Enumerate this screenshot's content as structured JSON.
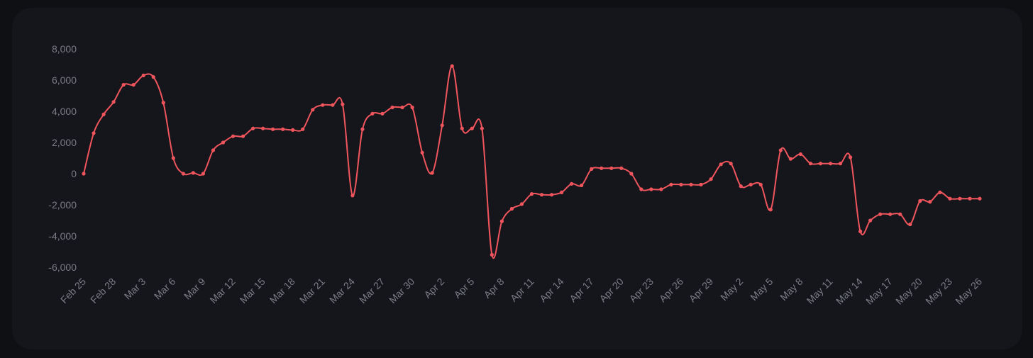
{
  "chart_data": {
    "type": "line",
    "title": "",
    "xlabel": "",
    "ylabel": "",
    "ylim": [
      -6000,
      8000
    ],
    "yticks": [
      8000,
      6000,
      4000,
      2000,
      0,
      -2000,
      -4000,
      -6000
    ],
    "ytick_labels": [
      "8,000",
      "6,000",
      "4,000",
      "2,000",
      "0",
      "-2,000",
      "-4,000",
      "-6,000"
    ],
    "xtick_labels": [
      "Feb 25",
      "Feb 28",
      "Mar 3",
      "Mar 6",
      "Mar 9",
      "Mar 12",
      "Mar 15",
      "Mar 18",
      "Mar 21",
      "Mar 24",
      "Mar 27",
      "Mar 30",
      "Apr 2",
      "Apr 5",
      "Apr 8",
      "Apr 11",
      "Apr 14",
      "Apr 17",
      "Apr 20",
      "Apr 23",
      "Apr 26",
      "Apr 29",
      "May 2",
      "May 5",
      "May 8",
      "May 11",
      "May 14",
      "May 17",
      "May 20",
      "May 23",
      "May 26"
    ],
    "grid": false,
    "series": [
      {
        "color": "#f0555d",
        "x": [
          "Feb 25",
          "Feb 26",
          "Feb 27",
          "Feb 28",
          "Mar 1",
          "Mar 2",
          "Mar 3",
          "Mar 4",
          "Mar 5",
          "Mar 6",
          "Mar 7",
          "Mar 8",
          "Mar 9",
          "Mar 10",
          "Mar 11",
          "Mar 12",
          "Mar 13",
          "Mar 14",
          "Mar 15",
          "Mar 16",
          "Mar 17",
          "Mar 18",
          "Mar 19",
          "Mar 20",
          "Mar 21",
          "Mar 22",
          "Mar 23",
          "Mar 24",
          "Mar 25",
          "Mar 26",
          "Mar 27",
          "Mar 28",
          "Mar 29",
          "Mar 30",
          "Mar 31",
          "Apr 1",
          "Apr 2",
          "Apr 3",
          "Apr 4",
          "Apr 5",
          "Apr 6",
          "Apr 7",
          "Apr 8",
          "Apr 9",
          "Apr 10",
          "Apr 11",
          "Apr 12",
          "Apr 13",
          "Apr 14",
          "Apr 15",
          "Apr 16",
          "Apr 17",
          "Apr 18",
          "Apr 19",
          "Apr 20",
          "Apr 21",
          "Apr 22",
          "Apr 23",
          "Apr 24",
          "Apr 25",
          "Apr 26",
          "Apr 27",
          "Apr 28",
          "Apr 29",
          "Apr 30",
          "May 1",
          "May 2",
          "May 3",
          "May 4",
          "May 5",
          "May 6",
          "May 7",
          "May 8",
          "May 9",
          "May 10",
          "May 11",
          "May 12",
          "May 13",
          "May 14",
          "May 15",
          "May 16",
          "May 17",
          "May 18",
          "May 19",
          "May 20",
          "May 21",
          "May 22",
          "May 23",
          "May 24",
          "May 25",
          "May 26"
        ],
        "values": [
          0,
          2600,
          3800,
          4600,
          5700,
          5700,
          6300,
          6200,
          4550,
          1000,
          0,
          50,
          0,
          1500,
          2000,
          2400,
          2400,
          2900,
          2900,
          2850,
          2850,
          2800,
          2850,
          4100,
          4400,
          4400,
          4450,
          -1400,
          2850,
          3850,
          3850,
          4250,
          4250,
          4250,
          1350,
          50,
          3100,
          6900,
          2900,
          2900,
          2900,
          -5200,
          -3050,
          -2250,
          -1950,
          -1300,
          -1350,
          -1350,
          -1200,
          -650,
          -750,
          300,
          350,
          350,
          350,
          0,
          -1000,
          -1000,
          -1000,
          -700,
          -700,
          -700,
          -700,
          -350,
          600,
          650,
          -800,
          -700,
          -700,
          -2300,
          1500,
          950,
          1250,
          650,
          650,
          650,
          650,
          1050,
          -3700,
          -3000,
          -2600,
          -2600,
          -2600,
          -3250,
          -1750,
          -1800,
          -1200,
          -1600,
          -1600,
          -1600,
          -1600
        ]
      }
    ]
  }
}
